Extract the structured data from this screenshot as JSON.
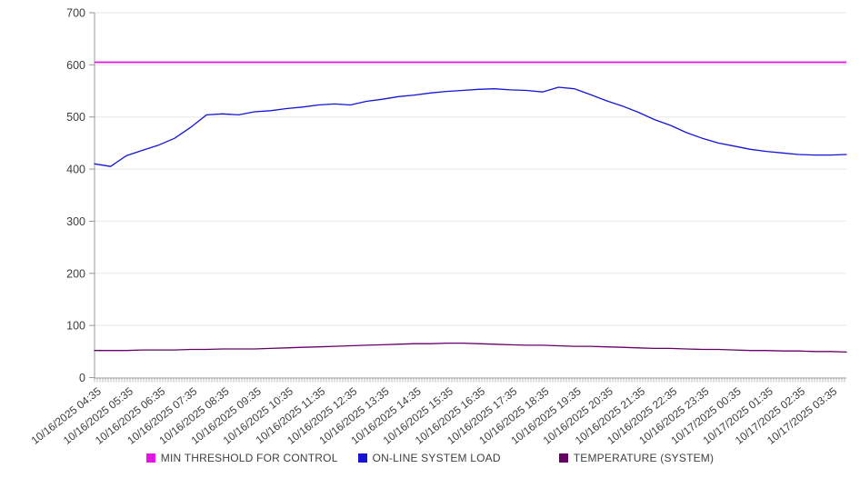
{
  "chart_data": {
    "type": "line",
    "title": "",
    "xlabel": "",
    "ylabel": "",
    "ylim": [
      0,
      700
    ],
    "y_ticks": [
      0,
      100,
      200,
      300,
      400,
      500,
      600,
      700
    ],
    "grid": true,
    "legend_position": "bottom",
    "x_labels": [
      "10/16/2025 04:35",
      "10/16/2025 05:35",
      "10/16/2025 06:35",
      "10/16/2025 07:35",
      "10/16/2025 08:35",
      "10/16/2025 09:35",
      "10/16/2025 10:35",
      "10/16/2025 11:35",
      "10/16/2025 12:35",
      "10/16/2025 13:35",
      "10/16/2025 14:35",
      "10/16/2025 15:35",
      "10/16/2025 16:35",
      "10/16/2025 17:35",
      "10/16/2025 18:35",
      "10/16/2025 19:35",
      "10/16/2025 20:35",
      "10/16/2025 21:35",
      "10/16/2025 22:35",
      "10/16/2025 23:35",
      "10/17/2025 00:35",
      "10/17/2025 01:35",
      "10/17/2025 02:35",
      "10/17/2025 03:35"
    ],
    "points_per_hour": 2,
    "series": [
      {
        "name": "MIN THRESHOLD FOR CONTROL",
        "color": "#E613E6",
        "constant_value": 605
      },
      {
        "name": "ON-LINE SYSTEM LOAD",
        "color": "#1414D2",
        "values": [
          410,
          405,
          426,
          436,
          446,
          459,
          480,
          504,
          506,
          504,
          510,
          512,
          516,
          519,
          523,
          525,
          523,
          530,
          534,
          539,
          542,
          546,
          549,
          551,
          553,
          554,
          552,
          551,
          548,
          557,
          554,
          543,
          531,
          521,
          509,
          495,
          484,
          470,
          459,
          450,
          444,
          438,
          434,
          431,
          428,
          427,
          427,
          428
        ]
      },
      {
        "name": "TEMPERATURE (SYSTEM)",
        "color": "#660066",
        "values": [
          52,
          52,
          52,
          53,
          53,
          53,
          54,
          54,
          55,
          55,
          55,
          56,
          57,
          58,
          59,
          60,
          61,
          62,
          63,
          64,
          65,
          65,
          66,
          66,
          65,
          64,
          63,
          62,
          62,
          61,
          60,
          60,
          59,
          58,
          57,
          56,
          56,
          55,
          54,
          54,
          53,
          52,
          52,
          51,
          51,
          50,
          50,
          49
        ]
      }
    ],
    "colors": {
      "grid": "#e8e8e8",
      "axis": "#9a9a9a",
      "minor_tick": "#b8b8b8",
      "tick_label": "#3d3d3d",
      "background": "#ffffff"
    }
  }
}
